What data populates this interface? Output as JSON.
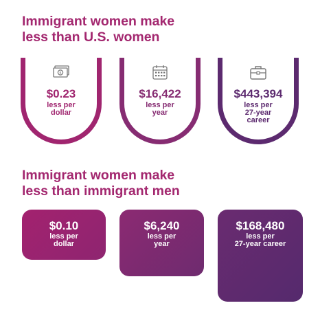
{
  "section1": {
    "title_lines": [
      "Immigrant women make",
      "less than U.S. women"
    ],
    "cards": [
      {
        "icon": "money-bill-icon",
        "amount": "$0.23",
        "desc_lines": [
          "less per",
          "dollar"
        ]
      },
      {
        "icon": "calendar-icon",
        "amount": "$16,422",
        "desc_lines": [
          "less per",
          "year"
        ]
      },
      {
        "icon": "briefcase-icon",
        "amount": "$443,394",
        "desc_lines": [
          "less per",
          "27-year",
          "career"
        ]
      }
    ]
  },
  "section2": {
    "title_lines": [
      "Immigrant women make",
      "less than immigrant men"
    ],
    "cards": [
      {
        "amount": "$0.10",
        "desc_lines": [
          "less per",
          "dollar"
        ]
      },
      {
        "amount": "$6,240",
        "desc_lines": [
          "less per",
          "year"
        ]
      },
      {
        "amount": "$168,480",
        "desc_lines": [
          "less per",
          "27-year career"
        ]
      }
    ]
  },
  "colors": {
    "heading": "#a3276f",
    "magenta": "#a0256f",
    "plum": "#862c72",
    "purple": "#5c2a6f"
  }
}
